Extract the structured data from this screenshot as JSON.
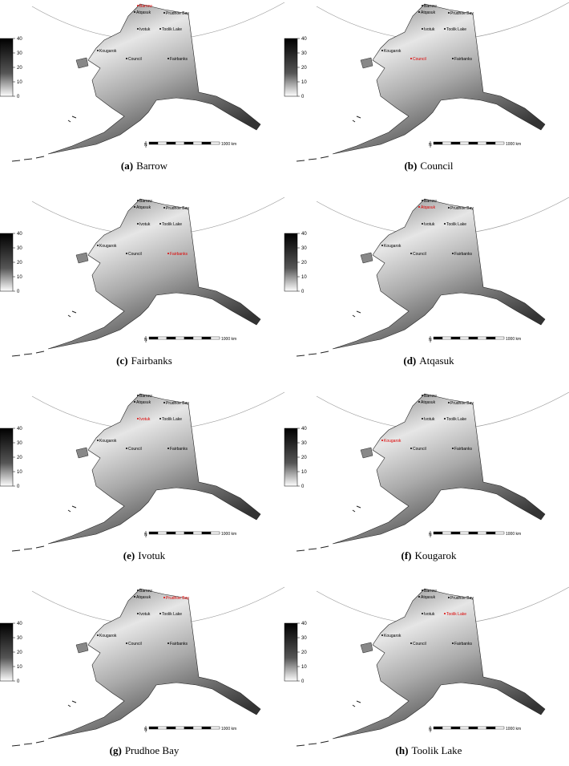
{
  "colorbar": {
    "ticks": [
      0,
      10,
      20,
      30,
      40
    ]
  },
  "scale_label": "1000 km",
  "north": "N",
  "sites": [
    "Barrow",
    "Atqasuk",
    "Prudhoe Bay",
    "Ivotuk",
    "Toolik Lake",
    "Kougarok",
    "Council",
    "Fairbanks"
  ],
  "panels": [
    {
      "letter": "(a)",
      "name": "Barrow"
    },
    {
      "letter": "(b)",
      "name": "Council"
    },
    {
      "letter": "(c)",
      "name": "Fairbanks"
    },
    {
      "letter": "(d)",
      "name": "Atqasuk"
    },
    {
      "letter": "(e)",
      "name": "Ivotuk"
    },
    {
      "letter": "(f)",
      "name": "Kougarok"
    },
    {
      "letter": "(g)",
      "name": "Prudhoe Bay"
    },
    {
      "letter": "(h)",
      "name": "Toolik Lake"
    }
  ]
}
